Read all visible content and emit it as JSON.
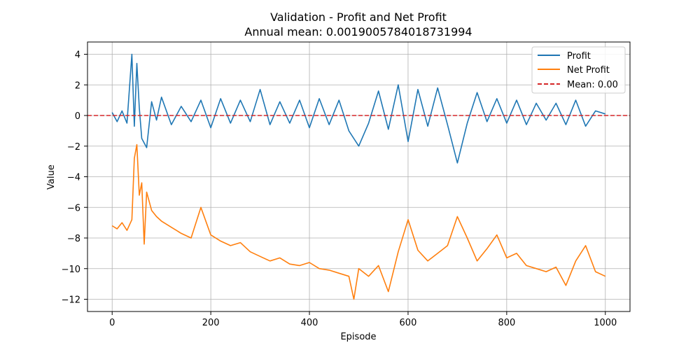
{
  "chart_data": {
    "type": "line",
    "title": "Validation - Profit and Net Profit",
    "subtitle": "Annual mean: 0.0019005784018731994",
    "xlabel": "Episode",
    "ylabel": "Value",
    "xlim": [
      -50,
      1050
    ],
    "ylim": [
      -12.8,
      4.8
    ],
    "xticks": [
      0,
      200,
      400,
      600,
      800,
      1000
    ],
    "yticks": [
      -12,
      -10,
      -8,
      -6,
      -4,
      -2,
      0,
      2,
      4
    ],
    "grid": true,
    "legend_position": "top-right",
    "mean_line": {
      "name": "Mean: 0.00",
      "value": 0.0,
      "color": "#d62728",
      "style": "dashed"
    },
    "series": [
      {
        "name": "Profit",
        "color": "#1f77b4",
        "x": [
          0,
          10,
          20,
          30,
          40,
          45,
          50,
          55,
          60,
          70,
          80,
          90,
          100,
          120,
          140,
          160,
          180,
          200,
          220,
          240,
          260,
          280,
          300,
          320,
          340,
          360,
          380,
          400,
          420,
          440,
          460,
          480,
          500,
          520,
          540,
          560,
          580,
          600,
          620,
          640,
          660,
          680,
          700,
          720,
          740,
          760,
          780,
          800,
          820,
          840,
          860,
          880,
          900,
          920,
          940,
          960,
          980,
          1000
        ],
        "y": [
          0.2,
          -0.4,
          0.3,
          -0.5,
          4.0,
          -0.7,
          3.4,
          0.5,
          -1.5,
          -2.1,
          0.9,
          -0.3,
          1.2,
          -0.6,
          0.6,
          -0.4,
          1.0,
          -0.8,
          1.1,
          -0.5,
          1.0,
          -0.4,
          1.7,
          -0.6,
          0.9,
          -0.5,
          1.0,
          -0.8,
          1.1,
          -0.6,
          1.0,
          -1.0,
          -2.0,
          -0.5,
          1.6,
          -0.9,
          2.0,
          -1.7,
          1.7,
          -0.7,
          1.8,
          -0.6,
          -3.1,
          -0.5,
          1.5,
          -0.4,
          1.1,
          -0.5,
          1.0,
          -0.6,
          0.8,
          -0.3,
          0.8,
          -0.6,
          1.0,
          -0.7,
          0.3,
          0.1
        ]
      },
      {
        "name": "Net Profit",
        "color": "#ff7f0e",
        "x": [
          0,
          10,
          20,
          30,
          40,
          45,
          50,
          55,
          60,
          65,
          70,
          80,
          90,
          100,
          120,
          140,
          160,
          180,
          200,
          220,
          240,
          260,
          280,
          300,
          320,
          340,
          360,
          380,
          400,
          420,
          440,
          460,
          480,
          490,
          500,
          520,
          540,
          560,
          580,
          600,
          620,
          640,
          660,
          680,
          700,
          720,
          740,
          760,
          780,
          800,
          820,
          840,
          860,
          880,
          900,
          920,
          940,
          960,
          980,
          1000
        ],
        "y": [
          -7.2,
          -7.4,
          -7.0,
          -7.5,
          -6.8,
          -2.8,
          -1.9,
          -5.2,
          -4.4,
          -8.4,
          -5.0,
          -6.2,
          -6.6,
          -6.9,
          -7.3,
          -7.7,
          -8.0,
          -6.0,
          -7.8,
          -8.2,
          -8.5,
          -8.3,
          -8.9,
          -9.2,
          -9.5,
          -9.3,
          -9.7,
          -9.8,
          -9.6,
          -10.0,
          -10.1,
          -10.3,
          -10.5,
          -12.0,
          -10.0,
          -10.5,
          -9.8,
          -11.5,
          -8.9,
          -6.8,
          -8.8,
          -9.5,
          -9.0,
          -8.5,
          -6.6,
          -8.0,
          -9.5,
          -8.7,
          -7.8,
          -9.3,
          -9.0,
          -9.8,
          -10.0,
          -10.2,
          -9.9,
          -11.1,
          -9.5,
          -8.5,
          -10.2,
          -10.5
        ]
      }
    ]
  }
}
